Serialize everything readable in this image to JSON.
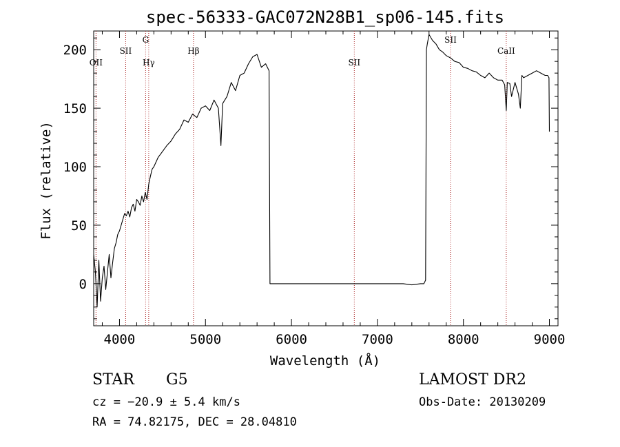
{
  "chart_data": {
    "type": "line",
    "title": "spec-56333-GAC072N28B1_sp06-145.fits",
    "xlabel": "Wavelength (Å)",
    "ylabel": "Flux (relative)",
    "xlim": [
      3700,
      9100
    ],
    "ylim": [
      -36,
      216
    ],
    "x_ticks": [
      4000,
      5000,
      6000,
      7000,
      8000,
      9000
    ],
    "y_ticks": [
      0,
      50,
      100,
      150,
      200
    ],
    "line_color": "#000000",
    "marker_color": "#aa2222",
    "series": [
      {
        "x": [
          3700,
          3720,
          3740,
          3760,
          3780,
          3800,
          3820,
          3840,
          3860,
          3880,
          3900,
          3920,
          3940,
          3960,
          3980,
          4000,
          4020,
          4040,
          4060,
          4080,
          4100,
          4120,
          4140,
          4160,
          4180,
          4200,
          4220,
          4240,
          4260,
          4280,
          4300,
          4320,
          4340,
          4360,
          4380,
          4400,
          4450,
          4500,
          4550,
          4600,
          4650,
          4700,
          4750,
          4800,
          4850,
          4900,
          4950,
          5000,
          5050,
          5100,
          5150,
          5180,
          5200,
          5250,
          5300,
          5350,
          5400,
          5450,
          5500,
          5550,
          5600,
          5650,
          5700,
          5740,
          5750,
          5755,
          5760,
          5800,
          6000,
          6500,
          7000,
          7200,
          7300,
          7400,
          7500,
          7540,
          7560,
          7565,
          7570,
          7580,
          7600,
          7640,
          7680,
          7720,
          7760,
          7800,
          7850,
          7900,
          7950,
          8000,
          8050,
          8100,
          8150,
          8200,
          8250,
          8300,
          8350,
          8400,
          8450,
          8480,
          8498,
          8510,
          8540,
          8560,
          8600,
          8640,
          8662,
          8680,
          8700,
          8750,
          8800,
          8850,
          8900,
          8950,
          8980,
          8995,
          9000
        ],
        "y": [
          25,
          10,
          -20,
          20,
          -15,
          5,
          15,
          -5,
          10,
          25,
          5,
          18,
          30,
          35,
          42,
          45,
          50,
          55,
          60,
          58,
          62,
          57,
          65,
          68,
          62,
          72,
          70,
          67,
          75,
          70,
          78,
          72,
          85,
          92,
          98,
          100,
          108,
          113,
          118,
          122,
          128,
          132,
          140,
          138,
          145,
          142,
          150,
          152,
          148,
          157,
          150,
          118,
          154,
          160,
          172,
          165,
          178,
          180,
          188,
          194,
          196,
          185,
          188,
          182,
          0,
          0,
          0,
          0,
          0,
          0,
          0,
          0,
          0,
          -1,
          0,
          0,
          3,
          100,
          200,
          205,
          213,
          208,
          205,
          200,
          198,
          195,
          193,
          190,
          189,
          185,
          184,
          182,
          181,
          178,
          176,
          180,
          176,
          174,
          174,
          170,
          148,
          172,
          171,
          160,
          172,
          162,
          150,
          178,
          176,
          178,
          180,
          182,
          180,
          178,
          178,
          176,
          130
        ]
      }
    ],
    "lines": [
      {
        "label": "OII",
        "x": 3727,
        "label_row": "low"
      },
      {
        "label": "SII",
        "x": 4072,
        "label_row": "mid"
      },
      {
        "label": "G",
        "x": 4304,
        "label_row": "high"
      },
      {
        "label": "Hγ",
        "x": 4340,
        "label_row": "low"
      },
      {
        "label": "Hβ",
        "x": 4861,
        "label_row": "mid"
      },
      {
        "label": "SII",
        "x": 6731,
        "label_row": "low"
      },
      {
        "label": "SII",
        "x": 7850,
        "label_row": "high"
      },
      {
        "label": "CaII",
        "x": 8498,
        "label_row": "mid"
      }
    ]
  },
  "info": {
    "object_class": "STAR",
    "subclass": "G5",
    "cz": "cz = −20.9 ± 5.4 km/s",
    "coords": "RA =  74.82175, DEC =  28.04810",
    "survey": "LAMOST DR2",
    "obs_date": "Obs-Date: 20130209"
  }
}
